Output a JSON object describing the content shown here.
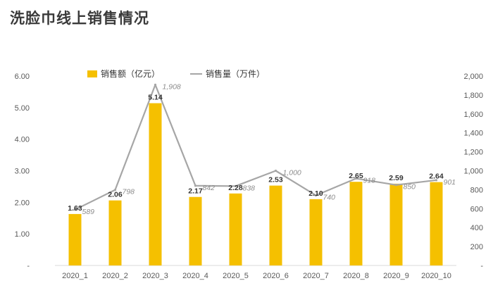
{
  "chart_data": {
    "type": "bar",
    "title": "洗脸巾线上销售情况",
    "categories": [
      "2020_1",
      "2020_2",
      "2020_3",
      "2020_4",
      "2020_5",
      "2020_6",
      "2020_7",
      "2020_8",
      "2020_9",
      "2020_10"
    ],
    "series": [
      {
        "name": "销售额（亿元）",
        "type": "bar",
        "axis": "left",
        "color": "#f5c000",
        "values": [
          1.63,
          2.06,
          5.14,
          2.17,
          2.28,
          2.53,
          2.1,
          2.65,
          2.59,
          2.64
        ],
        "labels": [
          "1.63",
          "2.06",
          "5.14",
          "2.17",
          "2.28",
          "2.53",
          "2.10",
          "2.65",
          "2.59",
          "2.64"
        ]
      },
      {
        "name": "销售量（万件）",
        "type": "line",
        "axis": "right",
        "color": "#a6a6a6",
        "values": [
          589,
          798,
          1908,
          842,
          838,
          1000,
          740,
          918,
          850,
          901
        ],
        "labels": [
          "589",
          "798",
          "1,908",
          "842",
          "838",
          "1,000",
          "740",
          "918",
          "850",
          "901"
        ]
      }
    ],
    "y_left": {
      "ylim": [
        0,
        6
      ],
      "ticks": [
        "-",
        "1.00",
        "2.00",
        "3.00",
        "4.00",
        "5.00",
        "6.00"
      ]
    },
    "y_right": {
      "ylim": [
        0,
        2000
      ],
      "ticks": [
        "-",
        "200",
        "400",
        "600",
        "800",
        "1,000",
        "1,200",
        "1,400",
        "1,600",
        "1,800",
        "2,000"
      ]
    },
    "grid": false,
    "legend": "top-left"
  }
}
